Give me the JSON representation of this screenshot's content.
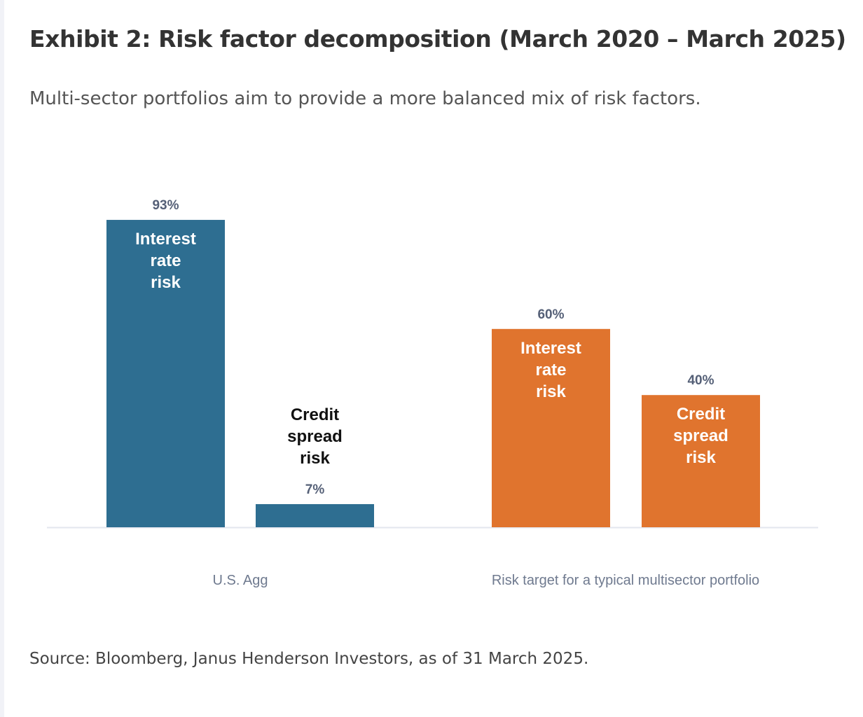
{
  "exhibit": {
    "title": "Exhibit 2: Risk factor decomposition (March 2020 – March 2025)",
    "subtitle": "Multi-sector portfolios aim to provide a more balanced mix of risk factors.",
    "source": "Source: Bloomberg, Janus Henderson Investors, as of 31 March 2025."
  },
  "colors": {
    "us_agg": "#2e6e91",
    "multisector": "#e0742e",
    "value_label": "#556077",
    "category_label": "#6f7a8f",
    "inside_label": "#ffffff",
    "outside_label": "#111111"
  },
  "chart_data": {
    "type": "bar",
    "ylim": [
      0,
      100
    ],
    "grid": false,
    "legend": "none",
    "groups": [
      {
        "name": "U.S. Agg",
        "color": "#2e6e91",
        "bars": [
          {
            "label": "Interest rate risk",
            "value": 93,
            "value_text": "93%",
            "label_lines": [
              "Interest",
              "rate",
              "risk"
            ],
            "label_position": "inside"
          },
          {
            "label": "Credit spread risk",
            "value": 7,
            "value_text": "7%",
            "label_lines": [
              "Credit",
              "spread",
              "risk"
            ],
            "label_position": "above"
          }
        ]
      },
      {
        "name": "Risk target for a typical multisector portfolio",
        "color": "#e0742e",
        "bars": [
          {
            "label": "Interest rate risk",
            "value": 60,
            "value_text": "60%",
            "label_lines": [
              "Interest",
              "rate",
              "risk"
            ],
            "label_position": "inside"
          },
          {
            "label": "Credit spread risk",
            "value": 40,
            "value_text": "40%",
            "label_lines": [
              "Credit",
              "spread",
              "risk"
            ],
            "label_position": "inside"
          }
        ]
      }
    ]
  }
}
